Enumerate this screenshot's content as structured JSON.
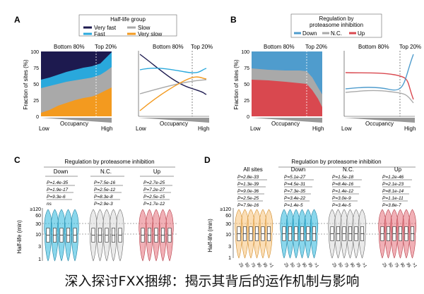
{
  "panels": {
    "A": {
      "letter": "A",
      "legend_title": "Half-life group",
      "legend": [
        {
          "label": "Very fast",
          "color": "#1d1a4f"
        },
        {
          "label": "Slow",
          "color": "#a9a9a9"
        },
        {
          "label": "Fast",
          "color": "#29a8dc"
        },
        {
          "label": "Very slow",
          "color": "#f39a1f"
        }
      ],
      "bottom_label": "Bottom 80%",
      "top_label": "Top 20%",
      "ylabel": "Fraction of sites (%)",
      "yticks": [
        "100",
        "75",
        "50",
        "25",
        "0"
      ],
      "xlabel": "Occupancy",
      "low": "Low",
      "high": "High"
    },
    "B": {
      "letter": "B",
      "legend_title_1": "Regulation by",
      "legend_title_2": "proteasome inhibition",
      "legend": [
        {
          "label": "Down",
          "color": "#4f9ccd"
        },
        {
          "label": "N.C.",
          "color": "#a9a9a9"
        },
        {
          "label": "Up",
          "color": "#d9484f"
        }
      ],
      "bottom_label": "Bottom 80%",
      "top_label": "Top 20%",
      "ylabel": "Fraction of sites (%)",
      "yticks": [
        "100",
        "75",
        "50",
        "25",
        "0"
      ],
      "xlabel": "Occupancy",
      "low": "Low",
      "high": "High"
    },
    "C": {
      "letter": "C",
      "header": "Regulation by proteasome inhibition",
      "groups": [
        {
          "label": "Down",
          "pvals": [
            "P=1.4e-35",
            "P=1.9e-17",
            "P=9.3e-6",
            "ns"
          ]
        },
        {
          "label": "N.C.",
          "pvals": [
            "P=7.5e-16",
            "P=2.5e-12",
            "P=8.3e-8",
            "P=2.9e-3"
          ]
        },
        {
          "label": "Up",
          "pvals": [
            "P=2.7e-25",
            "P=7.2e-27",
            "P=2.5e-15",
            "P=1.7e-12"
          ]
        }
      ],
      "ylabel": "Half-life (min)",
      "yticks": [
        "≥120",
        "60",
        "30",
        "10",
        "3",
        "1"
      ]
    },
    "D": {
      "letter": "D",
      "header": "Regulation by proteasome inhibition",
      "groups": [
        {
          "label": "All sites",
          "pvals": [
            "P=2.8e-33",
            "P=1.3e-39",
            "P=9.0e-36",
            "P=2.5e-25",
            "P=7.9e-16"
          ]
        },
        {
          "label": "Down",
          "pvals": [
            "P=5.1e-27",
            "P=4.5e-31",
            "P=7.3e-35",
            "P=3.4e-22",
            "P=1.4e-5"
          ]
        },
        {
          "label": "N.C.",
          "pvals": [
            "P=1.5e-18",
            "P=8.4e-16",
            "P=1.4e-12",
            "P=3.0e-9",
            "P=3.4e-5"
          ]
        },
        {
          "label": "Up",
          "pvals": [
            "P=1.2e-46",
            "P=2.1e-23",
            "P=8.1e-14",
            "P=1.1e-11",
            "P=3.8e-7"
          ]
        }
      ],
      "xticks": [
        "25",
        "50",
        "75",
        "90",
        "95",
        ">1"
      ],
      "ylabel": "Half-life (min)",
      "yticks": [
        "≥120",
        "60",
        "30",
        "10",
        "3",
        "1"
      ]
    }
  },
  "caption": "深入探讨FXX捆绑：揭示其背后的运作机制与影响"
}
